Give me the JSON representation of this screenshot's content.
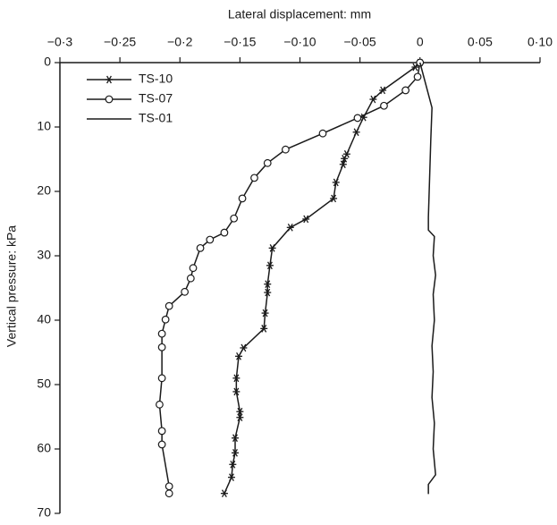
{
  "chart_data": {
    "type": "line",
    "xlabel": "Lateral displacement: mm",
    "ylabel": "Vertical pressure: kPa",
    "xlim": [
      -0.3,
      0.1
    ],
    "xticks": [
      {
        "value": -0.3,
        "label": "−0·3"
      },
      {
        "value": -0.25,
        "label": "−0·25"
      },
      {
        "value": -0.2,
        "label": "−0·2"
      },
      {
        "value": -0.15,
        "label": "−0·15"
      },
      {
        "value": -0.1,
        "label": "−0·10"
      },
      {
        "value": -0.05,
        "label": "−0·05"
      },
      0,
      {
        "value": 0.05,
        "label": "0·05"
      },
      {
        "value": 0.1,
        "label": "0·10"
      }
    ],
    "ylim": [
      0,
      70
    ],
    "yticks": [
      0,
      10,
      20,
      30,
      40,
      50,
      60,
      70
    ],
    "y_inverted": true,
    "x_axis_position": "top",
    "legend": "upper left",
    "series": [
      {
        "name": "TS-10",
        "color": "#1a1a1a",
        "marker": "asterisk",
        "x": [
          0,
          -0.004,
          -0.031,
          -0.039,
          -0.047,
          -0.053,
          -0.061,
          -0.063,
          -0.064,
          -0.07,
          -0.072,
          -0.095,
          -0.108,
          -0.123,
          -0.125,
          -0.127,
          -0.127,
          -0.129,
          -0.13,
          -0.147,
          -0.151,
          -0.153,
          -0.153,
          -0.15,
          -0.15,
          -0.154,
          -0.154,
          -0.156,
          -0.157,
          -0.163
        ],
        "values": [
          0,
          0.7,
          4.3,
          5.7,
          8.5,
          10.8,
          14.2,
          14.9,
          15.8,
          18.6,
          21.1,
          24.3,
          25.6,
          28.8,
          31.5,
          34.4,
          35.7,
          38.9,
          41.3,
          44.3,
          45.6,
          49,
          51.1,
          54.2,
          55.1,
          58.3,
          60.6,
          62.4,
          64.4,
          66.9
        ]
      },
      {
        "name": "TS-07",
        "color": "#1a1a1a",
        "marker": "circle",
        "x": [
          0,
          -0.002,
          -0.012,
          -0.03,
          -0.052,
          -0.081,
          -0.112,
          -0.127,
          -0.138,
          -0.148,
          -0.155,
          -0.163,
          -0.175,
          -0.183,
          -0.189,
          -0.191,
          -0.196,
          -0.209,
          -0.212,
          -0.215,
          -0.215,
          -0.215,
          -0.217,
          -0.215,
          -0.215,
          -0.209,
          -0.209
        ],
        "values": [
          0,
          2.2,
          4.3,
          6.7,
          8.6,
          11,
          13.5,
          15.6,
          17.9,
          21.1,
          24.2,
          26.4,
          27.5,
          28.8,
          31.9,
          33.5,
          35.6,
          37.8,
          39.9,
          42.1,
          44.2,
          49,
          53.1,
          57.2,
          59.3,
          65.8,
          66.9
        ]
      },
      {
        "name": "TS-01",
        "color": "#1a1a1a",
        "marker": "none",
        "x": [
          0,
          0.01,
          0.009,
          0.008,
          0.007,
          0.007,
          0.012,
          0.011,
          0.013,
          0.011,
          0.012,
          0.01,
          0.011,
          0.01,
          0.012,
          0.011,
          0.013,
          0.007,
          0.007
        ],
        "values": [
          0,
          7,
          12,
          18,
          24,
          26,
          27,
          30,
          33,
          36,
          40,
          44,
          48,
          52,
          56,
          60,
          64,
          65.5,
          67
        ]
      }
    ]
  }
}
